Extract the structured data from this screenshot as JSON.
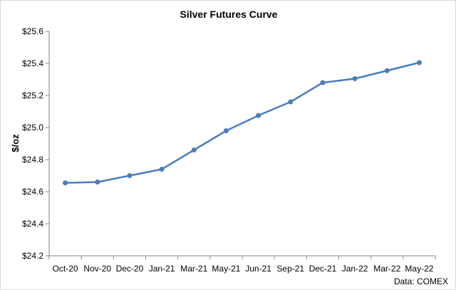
{
  "chart_data": {
    "type": "line",
    "title": "Silver Futures Curve",
    "xlabel": "",
    "ylabel": "$/oz",
    "source_note": "Data: COMEX",
    "categories": [
      "Oct-20",
      "Nov-20",
      "Dec-20",
      "Jan-21",
      "Mar-21",
      "May-21",
      "Jun-21",
      "Sep-21",
      "Dec-21",
      "Jan-22",
      "Mar-22",
      "May-22"
    ],
    "series": [
      {
        "values": [
          24.655,
          24.66,
          24.7,
          24.74,
          24.86,
          24.98,
          25.075,
          25.16,
          25.28,
          25.305,
          25.355,
          25.405
        ],
        "color": "#4a7ebb"
      }
    ],
    "ylim": [
      24.2,
      25.6
    ],
    "yticks": [
      24.2,
      24.4,
      24.6,
      24.8,
      25.0,
      25.2,
      25.4,
      25.6
    ],
    "ytick_labels": [
      "$24.2",
      "$24.4",
      "$24.6",
      "$24.8",
      "$25.0",
      "$25.2",
      "$25.4",
      "$25.6"
    ],
    "grid": false,
    "legend": "none",
    "axis_color": "#868686"
  }
}
